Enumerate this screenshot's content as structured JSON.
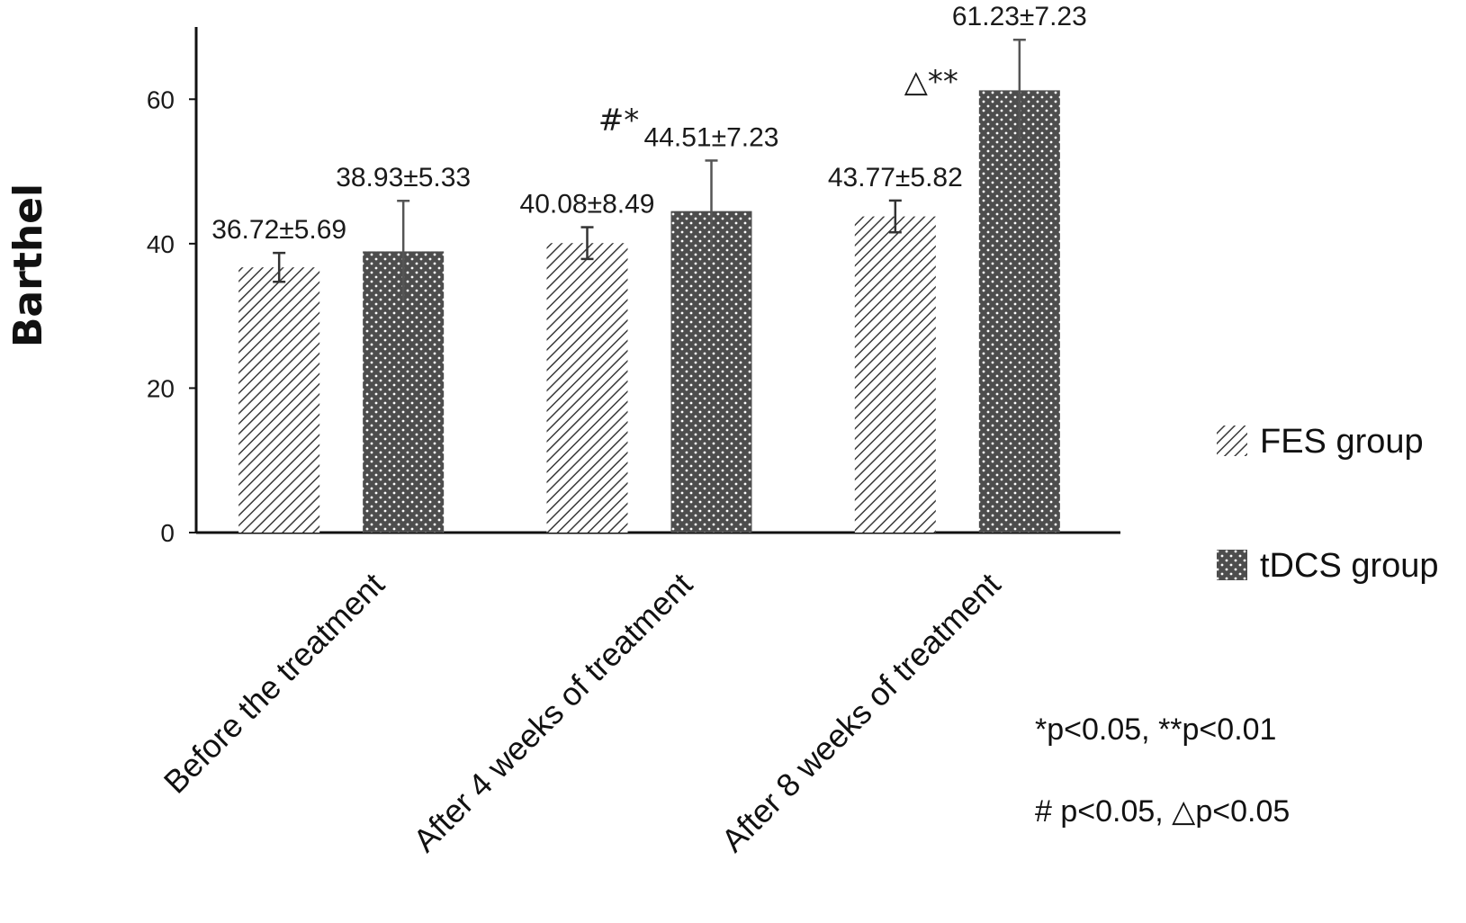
{
  "chart_data": {
    "type": "bar",
    "ylabel": "Barthel",
    "xlabel": "",
    "ylim": [
      0,
      70
    ],
    "yticks": [
      0,
      20,
      40,
      60
    ],
    "grid": false,
    "legend_position": "right",
    "categories": [
      "Before the treatment",
      "After 4 weeks of treatment",
      "After 8 weeks of treatment"
    ],
    "series": [
      {
        "name": "FES group",
        "pattern": "diagonal-hatch",
        "color": "#ffffff",
        "values": [
          36.72,
          40.08,
          43.77
        ],
        "errors": [
          2.0,
          2.2,
          2.2
        ],
        "labels": [
          "36.72±5.69",
          "40.08±8.49",
          "43.77±5.82"
        ]
      },
      {
        "name": "tDCS group",
        "pattern": "dotted",
        "color": "#4d4d4d",
        "values": [
          38.93,
          44.51,
          61.23
        ],
        "errors": [
          7.0,
          7.0,
          7.0
        ],
        "labels": [
          "38.93±5.33",
          "44.51±7.23",
          "61.23±7.23"
        ]
      }
    ],
    "significance": [
      "",
      "#*",
      "△**"
    ],
    "notes": [
      "*p<0.05, **p<0.01",
      "# p<0.05, △p<0.05"
    ]
  }
}
